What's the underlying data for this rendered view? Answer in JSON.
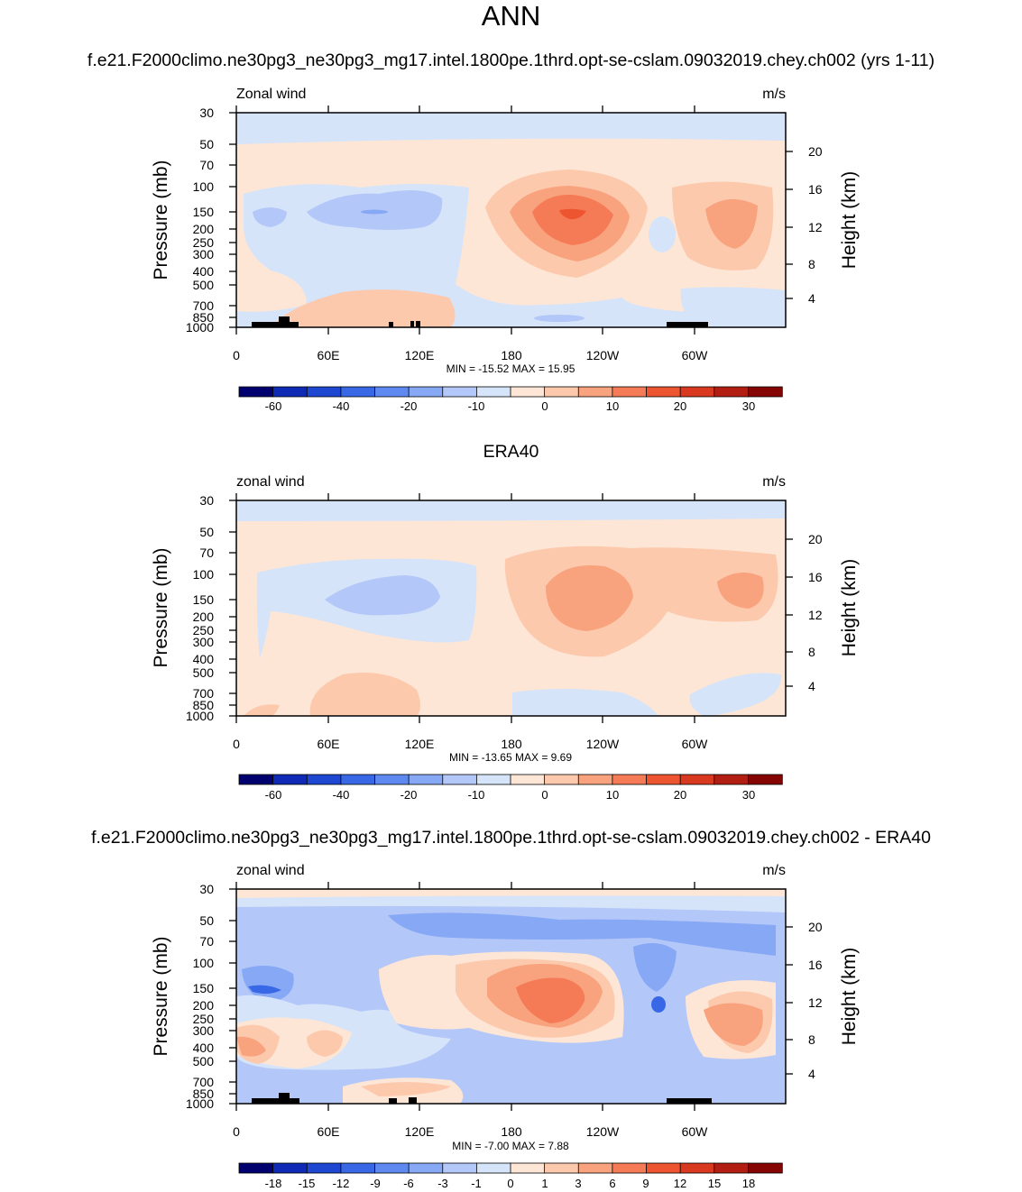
{
  "page": {
    "title": "ANN"
  },
  "palettes": {
    "abs": [
      "#00006e",
      "#0f2ab4",
      "#1e47d2",
      "#3868e6",
      "#5e89f0",
      "#87a8f5",
      "#b3c8f8",
      "#d6e4fa",
      "#fde6d5",
      "#fcc9ad",
      "#f9a27e",
      "#f47b56",
      "#ed5430",
      "#d9391e",
      "#b21e12",
      "#850404"
    ],
    "diff": [
      "#00006e",
      "#0f2ab4",
      "#1e47d2",
      "#3868e6",
      "#5e89f0",
      "#87a8f5",
      "#b3c8f8",
      "#d6e4fa",
      "#fde6d5",
      "#fcc9ad",
      "#f9a27e",
      "#f47b56",
      "#ed5430",
      "#d9391e",
      "#b21e12",
      "#850404"
    ]
  },
  "chart_data": [
    {
      "type": "contour",
      "title": "f.e21.F2000climo.ne30pg3_ne30pg3_mg17.intel.1800pe.1thrd.opt-se-cslam.09032019.chey.ch002 (yrs 1-11)",
      "left_label": "Zonal wind",
      "right_label": "m/s",
      "ylabel": "Pressure (mb)",
      "ylabel_right": "Height (km)",
      "xticks": [
        "0",
        "60E",
        "120E",
        "180",
        "120W",
        "60W"
      ],
      "yticks": [
        "30",
        "50",
        "70",
        "100",
        "150",
        "200",
        "250",
        "300",
        "400",
        "500",
        "700",
        "850",
        "1000"
      ],
      "yticks_right": [
        "20",
        "16",
        "12",
        "8",
        "4"
      ],
      "stats": "MIN = -15.52  MAX =  15.95",
      "colorbar_labels": [
        "-60",
        "-40",
        "-20",
        "-10",
        "0",
        "10",
        "20",
        "30"
      ],
      "min": -15.52,
      "max": 15.95
    },
    {
      "type": "contour",
      "title": "ERA40",
      "left_label": "zonal wind",
      "right_label": "m/s",
      "ylabel": "Pressure (mb)",
      "ylabel_right": "Height (km)",
      "xticks": [
        "0",
        "60E",
        "120E",
        "180",
        "120W",
        "60W"
      ],
      "yticks": [
        "30",
        "50",
        "70",
        "100",
        "150",
        "200",
        "250",
        "300",
        "400",
        "500",
        "700",
        "850",
        "1000"
      ],
      "yticks_right": [
        "20",
        "16",
        "12",
        "8",
        "4"
      ],
      "stats": "MIN = -13.65  MAX =   9.69",
      "colorbar_labels": [
        "-60",
        "-40",
        "-20",
        "-10",
        "0",
        "10",
        "20",
        "30"
      ],
      "min": -13.65,
      "max": 9.69
    },
    {
      "type": "contour",
      "title": "f.e21.F2000climo.ne30pg3_ne30pg3_mg17.intel.1800pe.1thrd.opt-se-cslam.09032019.chey.ch002 - ERA40",
      "left_label": "zonal wind",
      "right_label": "m/s",
      "ylabel": "Pressure (mb)",
      "ylabel_right": "Height (km)",
      "xticks": [
        "0",
        "60E",
        "120E",
        "180",
        "120W",
        "60W"
      ],
      "yticks": [
        "30",
        "50",
        "70",
        "100",
        "150",
        "200",
        "250",
        "300",
        "400",
        "500",
        "700",
        "850",
        "1000"
      ],
      "yticks_right": [
        "20",
        "16",
        "12",
        "8",
        "4"
      ],
      "stats": "MIN =  -7.00  MAX =   7.88",
      "colorbar_labels": [
        "-18",
        "-15",
        "-12",
        "-9",
        "-6",
        "-3",
        "-1",
        "0",
        "1",
        "3",
        "6",
        "9",
        "12",
        "15",
        "18"
      ],
      "min": -7.0,
      "max": 7.88
    }
  ]
}
